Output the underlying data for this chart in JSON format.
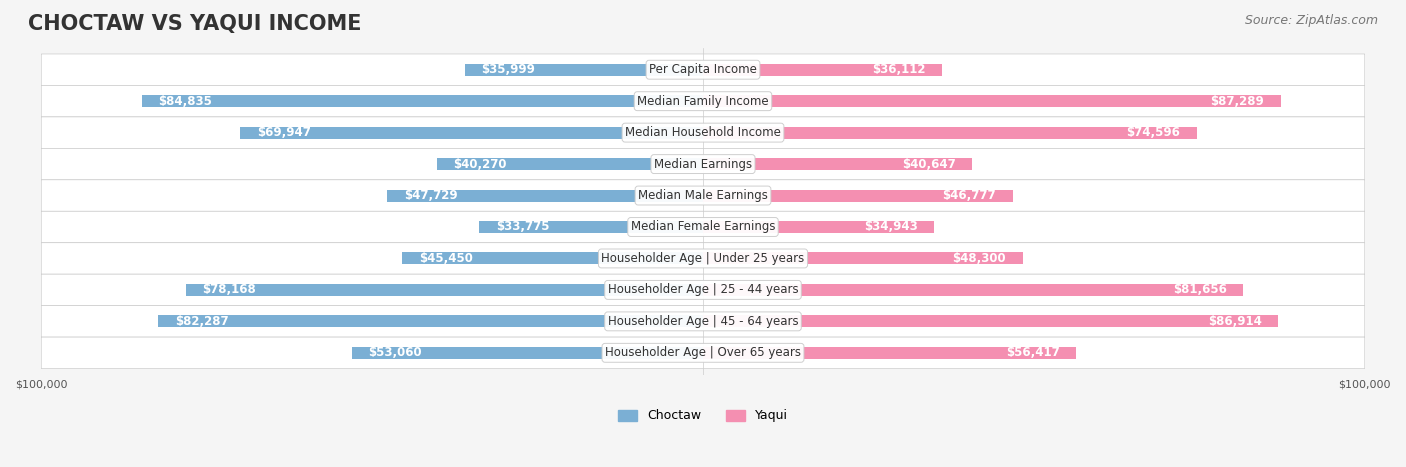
{
  "title": "CHOCTAW VS YAQUI INCOME",
  "source": "Source: ZipAtlas.com",
  "categories": [
    "Per Capita Income",
    "Median Family Income",
    "Median Household Income",
    "Median Earnings",
    "Median Male Earnings",
    "Median Female Earnings",
    "Householder Age | Under 25 years",
    "Householder Age | 25 - 44 years",
    "Householder Age | 45 - 64 years",
    "Householder Age | Over 65 years"
  ],
  "choctaw_values": [
    35999,
    84835,
    69947,
    40270,
    47729,
    33775,
    45450,
    78168,
    82287,
    53060
  ],
  "yaqui_values": [
    36112,
    87289,
    74596,
    40647,
    46777,
    34943,
    48300,
    81656,
    86914,
    56417
  ],
  "choctaw_labels": [
    "$35,999",
    "$84,835",
    "$69,947",
    "$40,270",
    "$47,729",
    "$33,775",
    "$45,450",
    "$78,168",
    "$82,287",
    "$53,060"
  ],
  "yaqui_labels": [
    "$36,112",
    "$87,289",
    "$74,596",
    "$40,647",
    "$46,777",
    "$34,943",
    "$48,300",
    "$81,656",
    "$86,914",
    "$56,417"
  ],
  "choctaw_color": "#7bafd4",
  "yaqui_color": "#f48fb1",
  "choctaw_color_dark": "#5b9cc4",
  "yaqui_color_dark": "#e91e8c",
  "max_value": 100000,
  "background_color": "#f5f5f5",
  "row_bg_color": "#ffffff",
  "row_alt_color": "#f0f0f0",
  "label_color_inside": "#ffffff",
  "label_color_outside": "#555555",
  "title_fontsize": 15,
  "source_fontsize": 9,
  "bar_label_fontsize": 8.5,
  "category_fontsize": 8.5,
  "axis_label_fontsize": 8,
  "legend_fontsize": 9
}
